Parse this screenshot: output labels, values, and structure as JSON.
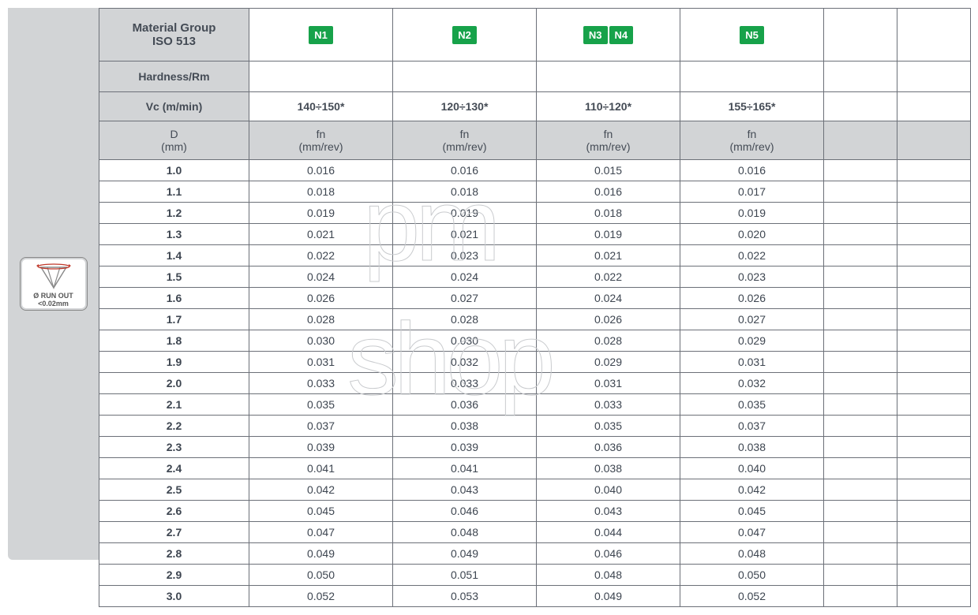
{
  "sidebar": {
    "runout_line1": "Ø RUN OUT",
    "runout_line2": "<0.02mm"
  },
  "chip_color": "#17a24a",
  "header_bg": "#d2d4d6",
  "border_color": "#6c7078",
  "headers": {
    "material_group_l1": "Material Group",
    "material_group_l2": "ISO 513",
    "chips": {
      "c1": [
        "N1"
      ],
      "c2": [
        "N2"
      ],
      "c3": [
        "N3",
        "N4"
      ],
      "c4": [
        "N5"
      ]
    },
    "hardness": "Hardness/Rm",
    "vc_label": "Vc (m/min)",
    "vc": {
      "c1": "140÷150*",
      "c2": "120÷130*",
      "c3": "110÷120*",
      "c4": "155÷165*"
    },
    "d_l1": "D",
    "d_l2": "(mm)",
    "fn_l1": "fn",
    "fn_l2": "(mm/rev)"
  },
  "rows": [
    {
      "d": "1.0",
      "c1": "0.016",
      "c2": "0.016",
      "c3": "0.015",
      "c4": "0.016"
    },
    {
      "d": "1.1",
      "c1": "0.018",
      "c2": "0.018",
      "c3": "0.016",
      "c4": "0.017"
    },
    {
      "d": "1.2",
      "c1": "0.019",
      "c2": "0.019",
      "c3": "0.018",
      "c4": "0.019"
    },
    {
      "d": "1.3",
      "c1": "0.021",
      "c2": "0.021",
      "c3": "0.019",
      "c4": "0.020"
    },
    {
      "d": "1.4",
      "c1": "0.022",
      "c2": "0.023",
      "c3": "0.021",
      "c4": "0.022"
    },
    {
      "d": "1.5",
      "c1": "0.024",
      "c2": "0.024",
      "c3": "0.022",
      "c4": "0.023"
    },
    {
      "d": "1.6",
      "c1": "0.026",
      "c2": "0.027",
      "c3": "0.024",
      "c4": "0.026"
    },
    {
      "d": "1.7",
      "c1": "0.028",
      "c2": "0.028",
      "c3": "0.026",
      "c4": "0.027"
    },
    {
      "d": "1.8",
      "c1": "0.030",
      "c2": "0.030",
      "c3": "0.028",
      "c4": "0.029"
    },
    {
      "d": "1.9",
      "c1": "0.031",
      "c2": "0.032",
      "c3": "0.029",
      "c4": "0.031"
    },
    {
      "d": "2.0",
      "c1": "0.033",
      "c2": "0.033",
      "c3": "0.031",
      "c4": "0.032"
    },
    {
      "d": "2.1",
      "c1": "0.035",
      "c2": "0.036",
      "c3": "0.033",
      "c4": "0.035"
    },
    {
      "d": "2.2",
      "c1": "0.037",
      "c2": "0.038",
      "c3": "0.035",
      "c4": "0.037"
    },
    {
      "d": "2.3",
      "c1": "0.039",
      "c2": "0.039",
      "c3": "0.036",
      "c4": "0.038"
    },
    {
      "d": "2.4",
      "c1": "0.041",
      "c2": "0.041",
      "c3": "0.038",
      "c4": "0.040"
    },
    {
      "d": "2.5",
      "c1": "0.042",
      "c2": "0.043",
      "c3": "0.040",
      "c4": "0.042"
    },
    {
      "d": "2.6",
      "c1": "0.045",
      "c2": "0.046",
      "c3": "0.043",
      "c4": "0.045"
    },
    {
      "d": "2.7",
      "c1": "0.047",
      "c2": "0.048",
      "c3": "0.044",
      "c4": "0.047"
    },
    {
      "d": "2.8",
      "c1": "0.049",
      "c2": "0.049",
      "c3": "0.046",
      "c4": "0.048"
    },
    {
      "d": "2.9",
      "c1": "0.050",
      "c2": "0.051",
      "c3": "0.048",
      "c4": "0.050"
    },
    {
      "d": "3.0",
      "c1": "0.052",
      "c2": "0.053",
      "c3": "0.049",
      "c4": "0.052"
    }
  ],
  "watermark": {
    "line1": "pm",
    "line2": "shop"
  }
}
